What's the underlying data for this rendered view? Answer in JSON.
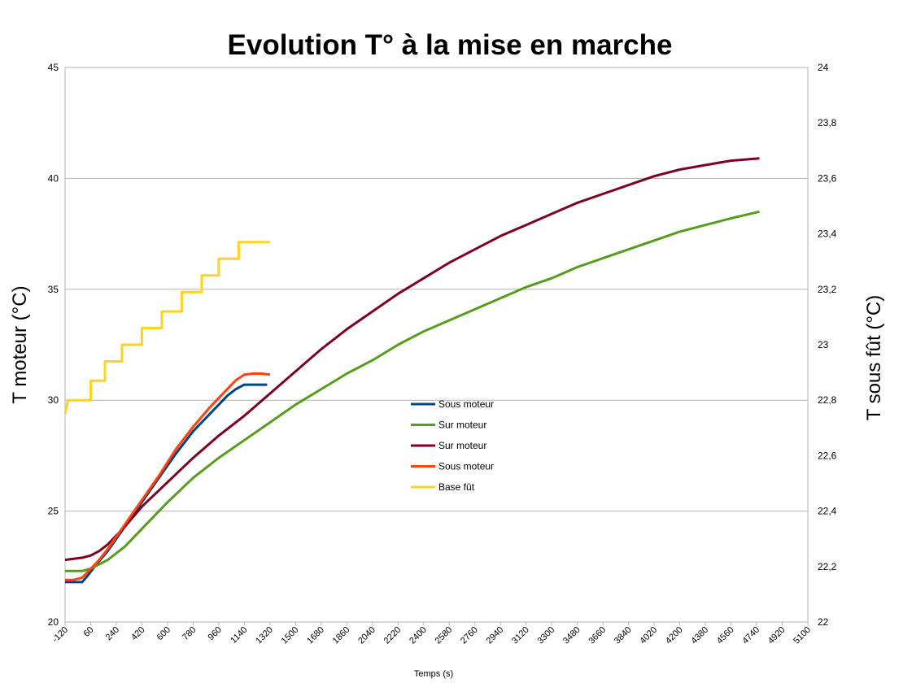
{
  "chart_data": {
    "type": "line",
    "title": "Evolution T° à la mise en marche",
    "xlabel": "Temps (s)",
    "ylabel": "T moteur (°C)",
    "ylabel_right": "T sous fût (°C)",
    "xlim": [
      -120,
      5100
    ],
    "ylim": [
      20,
      45
    ],
    "ylim_right": [
      22,
      24
    ],
    "x_ticks": [
      "-120",
      "60",
      "240",
      "420",
      "600",
      "780",
      "960",
      "1140",
      "1320",
      "1500",
      "1680",
      "1860",
      "2040",
      "2220",
      "2400",
      "2580",
      "2760",
      "2940",
      "3120",
      "3300",
      "3480",
      "3660",
      "3840",
      "4020",
      "4200",
      "4380",
      "4560",
      "4740",
      "4920",
      "5100"
    ],
    "y_ticks": [
      "20",
      "25",
      "30",
      "35",
      "40",
      "45"
    ],
    "y_ticks_right": [
      "22",
      "22,2",
      "22,4",
      "22,6",
      "22,8",
      "23",
      "23,2",
      "23,4",
      "23,6",
      "23,8",
      "24"
    ],
    "grid": true,
    "legend_position": "center",
    "series": [
      {
        "name": "Sous moteur",
        "axis": "left",
        "color": "#004586",
        "points": [
          [
            -120,
            21.8
          ],
          [
            -60,
            21.8
          ],
          [
            0,
            21.8
          ],
          [
            40,
            22.1
          ],
          [
            100,
            22.6
          ],
          [
            180,
            23.2
          ],
          [
            300,
            24.3
          ],
          [
            420,
            25.4
          ],
          [
            540,
            26.5
          ],
          [
            660,
            27.6
          ],
          [
            780,
            28.6
          ],
          [
            900,
            29.4
          ],
          [
            960,
            29.8
          ],
          [
            1020,
            30.2
          ],
          [
            1080,
            30.5
          ],
          [
            1140,
            30.7
          ],
          [
            1200,
            30.7
          ],
          [
            1260,
            30.7
          ],
          [
            1300,
            30.7
          ]
        ]
      },
      {
        "name": "Sur moteur",
        "axis": "left",
        "color": "#579d1c",
        "points": [
          [
            -120,
            22.3
          ],
          [
            0,
            22.3
          ],
          [
            60,
            22.4
          ],
          [
            120,
            22.6
          ],
          [
            180,
            22.8
          ],
          [
            300,
            23.4
          ],
          [
            420,
            24.2
          ],
          [
            600,
            25.4
          ],
          [
            780,
            26.5
          ],
          [
            960,
            27.4
          ],
          [
            1140,
            28.2
          ],
          [
            1320,
            29.0
          ],
          [
            1500,
            29.8
          ],
          [
            1680,
            30.5
          ],
          [
            1860,
            31.2
          ],
          [
            2040,
            31.8
          ],
          [
            2220,
            32.5
          ],
          [
            2400,
            33.1
          ],
          [
            2580,
            33.6
          ],
          [
            2760,
            34.1
          ],
          [
            2940,
            34.6
          ],
          [
            3120,
            35.1
          ],
          [
            3300,
            35.5
          ],
          [
            3480,
            36.0
          ],
          [
            3660,
            36.4
          ],
          [
            3840,
            36.8
          ],
          [
            4020,
            37.2
          ],
          [
            4200,
            37.6
          ],
          [
            4380,
            37.9
          ],
          [
            4560,
            38.2
          ],
          [
            4760,
            38.5
          ]
        ]
      },
      {
        "name": "Sur moteur",
        "axis": "left",
        "color": "#7e0021",
        "points": [
          [
            -120,
            22.8
          ],
          [
            -60,
            22.85
          ],
          [
            0,
            22.9
          ],
          [
            60,
            23.0
          ],
          [
            120,
            23.2
          ],
          [
            180,
            23.5
          ],
          [
            300,
            24.3
          ],
          [
            420,
            25.2
          ],
          [
            600,
            26.3
          ],
          [
            780,
            27.4
          ],
          [
            960,
            28.4
          ],
          [
            1140,
            29.3
          ],
          [
            1320,
            30.3
          ],
          [
            1500,
            31.3
          ],
          [
            1680,
            32.3
          ],
          [
            1860,
            33.2
          ],
          [
            2040,
            34.0
          ],
          [
            2220,
            34.8
          ],
          [
            2400,
            35.5
          ],
          [
            2580,
            36.2
          ],
          [
            2760,
            36.8
          ],
          [
            2940,
            37.4
          ],
          [
            3120,
            37.9
          ],
          [
            3300,
            38.4
          ],
          [
            3480,
            38.9
          ],
          [
            3660,
            39.3
          ],
          [
            3840,
            39.7
          ],
          [
            4020,
            40.1
          ],
          [
            4200,
            40.4
          ],
          [
            4380,
            40.6
          ],
          [
            4560,
            40.8
          ],
          [
            4760,
            40.9
          ]
        ]
      },
      {
        "name": "Sous moteur",
        "axis": "left",
        "color": "#ff420e",
        "points": [
          [
            -120,
            21.9
          ],
          [
            -60,
            21.9
          ],
          [
            0,
            22.0
          ],
          [
            60,
            22.4
          ],
          [
            120,
            22.8
          ],
          [
            180,
            23.3
          ],
          [
            300,
            24.4
          ],
          [
            420,
            25.5
          ],
          [
            540,
            26.6
          ],
          [
            660,
            27.8
          ],
          [
            780,
            28.8
          ],
          [
            900,
            29.7
          ],
          [
            1020,
            30.5
          ],
          [
            1080,
            30.9
          ],
          [
            1140,
            31.15
          ],
          [
            1200,
            31.2
          ],
          [
            1260,
            31.2
          ],
          [
            1320,
            31.15
          ]
        ]
      },
      {
        "name": "Base fût",
        "axis": "right",
        "color": "#ffd320",
        "points": [
          [
            -120,
            22.75
          ],
          [
            -100,
            22.8
          ],
          [
            0,
            22.8
          ],
          [
            60,
            22.8
          ],
          [
            60,
            22.87
          ],
          [
            160,
            22.87
          ],
          [
            160,
            22.94
          ],
          [
            280,
            22.94
          ],
          [
            280,
            23.0
          ],
          [
            420,
            23.0
          ],
          [
            420,
            23.06
          ],
          [
            560,
            23.06
          ],
          [
            560,
            23.12
          ],
          [
            700,
            23.12
          ],
          [
            700,
            23.19
          ],
          [
            840,
            23.19
          ],
          [
            840,
            23.25
          ],
          [
            960,
            23.25
          ],
          [
            960,
            23.31
          ],
          [
            1100,
            23.31
          ],
          [
            1100,
            23.37
          ],
          [
            1320,
            23.37
          ]
        ]
      }
    ]
  }
}
